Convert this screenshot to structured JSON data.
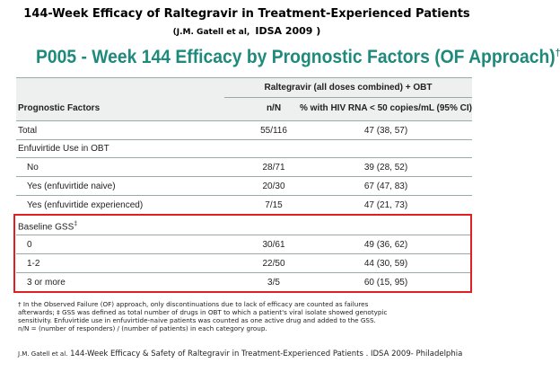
{
  "header": {
    "title": "144-Week Efficacy of Raltegravir in Treatment-Experienced Patients",
    "subtitle_authors": "(J.M. Gatell et al,",
    "subtitle_meeting": "IDSA 2009 )"
  },
  "slide": {
    "title": "P005 - Week 144 Efficacy by Prognostic Factors (OF Approach)",
    "title_mark": "†"
  },
  "table": {
    "group_header": "Raltegravir (all doses combined) + OBT",
    "columns": [
      "Prognostic Factors",
      "n/N",
      "% with HIV RNA < 50 copies/mL (95% CI)"
    ],
    "total": [
      "Total",
      "55/116",
      "47 (38, 57)"
    ],
    "sections": [
      {
        "heading": "Enfuvirtide Use in OBT",
        "rows": [
          [
            "No",
            "28/71",
            "39 (28, 52)"
          ],
          [
            "Yes (enfuvirtide naive)",
            "20/30",
            "67 (47, 83)"
          ],
          [
            "Yes (enfuvirtide experienced)",
            "7/15",
            "47 (21, 73)"
          ]
        ]
      },
      {
        "heading": "Baseline GSS",
        "heading_mark": "‡",
        "rows": [
          [
            "0",
            "30/61",
            "49 (36, 62)"
          ],
          [
            "1-2",
            "22/50",
            "44 (30, 59)"
          ],
          [
            "3 or more",
            "3/5",
            "60 (15, 95)"
          ]
        ]
      }
    ]
  },
  "footnotes": [
    "† In the Observed Failure (OF) approach, only discontinuations due to lack of efficacy are counted as failures",
    "afterwards; ‡ GSS was defined as total number of drugs in OBT to which a patient's viral isolate showed genotypic",
    "sensitivity. Enfuvirtide use in enfuvirtide-naive patients was counted as one active drug and added to the GSS.",
    "n/N = (number of responders) / (number of patients) in each category group."
  ],
  "citation": {
    "authors": "J.M. Gatell et al.",
    "text": "144-Week Efficacy & Safety of Raltegravir in Treatment-Experienced Patients . IDSA 2009- Philadelphia"
  }
}
